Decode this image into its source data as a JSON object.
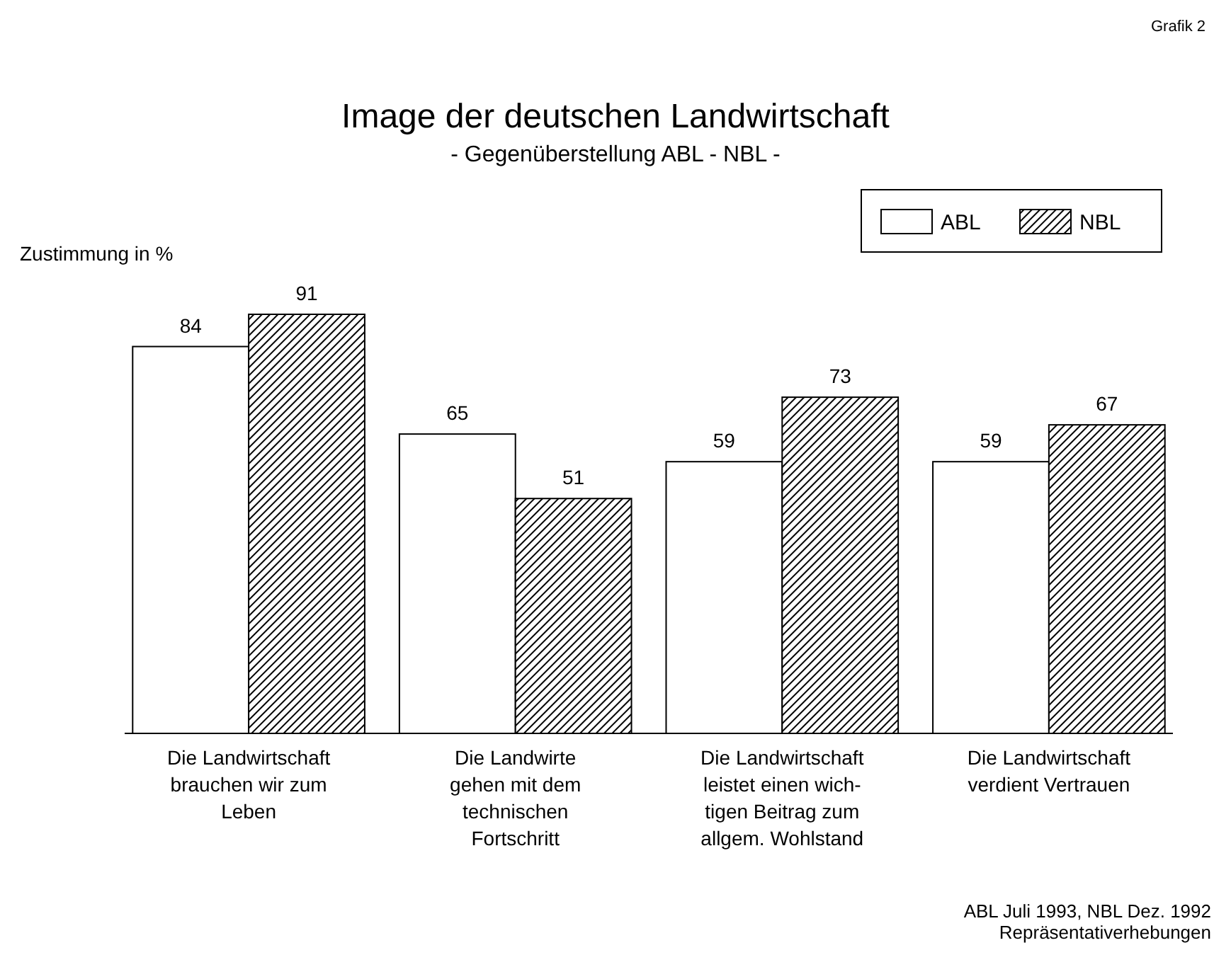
{
  "chart_data": {
    "type": "bar",
    "title": "Image der deutschen Landwirtschaft",
    "subtitle": "- Gegenüberstellung ABL - NBL -",
    "ylabel": "Zustimmung in %",
    "categories": [
      "Die Landwirtschaft\nbrauchen wir zum\nLeben",
      "Die Landwirte\ngehen mit dem\ntechnischen\nFortschritt",
      "Die Landwirtschaft\nleistet einen wich-\ntigen Beitrag zum\nallgem. Wohlstand",
      "Die Landwirtschaft\nverdient Vertrauen"
    ],
    "series": [
      {
        "name": "ABL",
        "color": "#ffffff",
        "values": [
          84,
          65,
          59,
          59
        ]
      },
      {
        "name": "NBL",
        "color": "#000000",
        "values": [
          91,
          51,
          73,
          67
        ]
      }
    ],
    "data_labels": true,
    "legend": "top right",
    "annotations": [
      "Grafik 2",
      "ABL Juli 1993, NBL Dez. 1992",
      "Repräsentativerhebungen"
    ]
  }
}
